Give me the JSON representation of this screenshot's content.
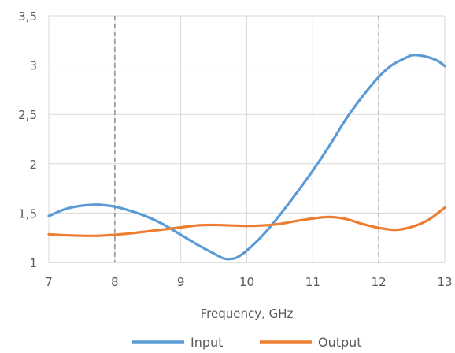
{
  "chart_data": {
    "type": "line",
    "xlabel": "Frequency, GHz",
    "ylabel": "",
    "xlim": [
      7,
      13
    ],
    "ylim": [
      1,
      3.5
    ],
    "x_ticks": [
      "7",
      "8",
      "9",
      "10",
      "11",
      "12",
      "13"
    ],
    "y_ticks": [
      "1",
      "1,5",
      "2",
      "2,5",
      "3",
      "3,5"
    ],
    "grid": true,
    "markers_dashed_at": [
      8,
      12
    ],
    "legend_position": "bottom",
    "series": [
      {
        "name": "Input",
        "color": "#5b9bd5",
        "x": [
          7.0,
          7.25,
          7.5,
          7.75,
          8.0,
          8.25,
          8.5,
          8.75,
          9.0,
          9.25,
          9.5,
          9.65,
          9.75,
          9.85,
          10.0,
          10.25,
          10.5,
          10.75,
          11.0,
          11.25,
          11.5,
          11.75,
          12.0,
          12.2,
          12.4,
          12.5,
          12.6,
          12.75,
          12.9,
          13.0
        ],
        "values": [
          1.47,
          1.54,
          1.575,
          1.585,
          1.565,
          1.52,
          1.46,
          1.38,
          1.28,
          1.18,
          1.09,
          1.04,
          1.035,
          1.05,
          1.12,
          1.28,
          1.48,
          1.7,
          1.93,
          2.18,
          2.45,
          2.68,
          2.88,
          3.0,
          3.07,
          3.1,
          3.1,
          3.08,
          3.04,
          2.99
        ]
      },
      {
        "name": "Output",
        "color": "#ed7d31",
        "x": [
          7.0,
          7.25,
          7.5,
          7.75,
          8.0,
          8.25,
          8.5,
          8.75,
          9.0,
          9.25,
          9.5,
          9.75,
          10.0,
          10.25,
          10.5,
          10.75,
          11.0,
          11.25,
          11.5,
          11.75,
          12.0,
          12.25,
          12.5,
          12.75,
          13.0
        ],
        "values": [
          1.285,
          1.275,
          1.27,
          1.27,
          1.28,
          1.295,
          1.315,
          1.335,
          1.355,
          1.375,
          1.38,
          1.375,
          1.37,
          1.375,
          1.39,
          1.42,
          1.445,
          1.46,
          1.44,
          1.39,
          1.35,
          1.33,
          1.36,
          1.43,
          1.555
        ]
      }
    ]
  }
}
